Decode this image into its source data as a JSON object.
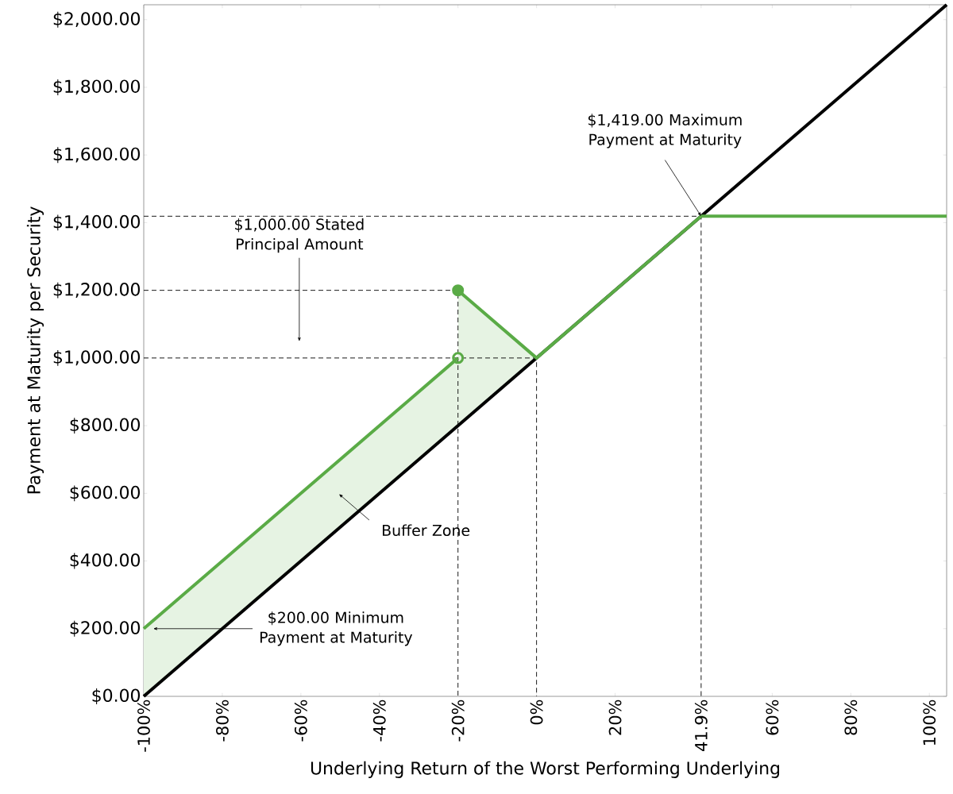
{
  "chart_data": {
    "type": "line",
    "xlabel": "Underlying Return of the Worst Performing Underlying",
    "ylabel": "Payment at Maturity per Security",
    "xlim": [
      -100,
      104.4
    ],
    "ylim": [
      0,
      2044
    ],
    "xticks": [
      {
        "value": -100,
        "label": "-100%"
      },
      {
        "value": -80,
        "label": "-80%"
      },
      {
        "value": -60,
        "label": "-60%"
      },
      {
        "value": -40,
        "label": "-40%"
      },
      {
        "value": -20,
        "label": "-20%"
      },
      {
        "value": 0,
        "label": "0%"
      },
      {
        "value": 20,
        "label": "20%"
      },
      {
        "value": 41.9,
        "label": "41.9%"
      },
      {
        "value": 60,
        "label": "60%"
      },
      {
        "value": 80,
        "label": "80%"
      },
      {
        "value": 100,
        "label": "100%"
      }
    ],
    "yticks": [
      {
        "value": 0,
        "label": "$0.00"
      },
      {
        "value": 200,
        "label": "$200.00"
      },
      {
        "value": 400,
        "label": "$400.00"
      },
      {
        "value": 600,
        "label": "$600.00"
      },
      {
        "value": 800,
        "label": "$800.00"
      },
      {
        "value": 1000,
        "label": "$1,000.00"
      },
      {
        "value": 1200,
        "label": "$1,200.00"
      },
      {
        "value": 1400,
        "label": "$1,400.00"
      },
      {
        "value": 1600,
        "label": "$1,600.00"
      },
      {
        "value": 1800,
        "label": "$1,800.00"
      },
      {
        "value": 2000,
        "label": "$2,000.00"
      }
    ],
    "grid": false,
    "series": [
      {
        "line_style": "dashed",
        "color": "#000000",
        "x": [
          -100,
          41.9,
          41.9
        ],
        "values": [
          1419,
          1419,
          0
        ]
      },
      {
        "line_style": "dashed",
        "color": "#000000",
        "x": [
          -100,
          -20,
          -20
        ],
        "values": [
          1200,
          1200,
          0
        ]
      },
      {
        "line_style": "dashed",
        "color": "#000000",
        "x": [
          -100,
          0,
          0
        ],
        "values": [
          1000,
          1000,
          0
        ]
      },
      {
        "line_style": "solid",
        "color": "#000000",
        "x": [
          -100,
          104.4
        ],
        "values": [
          0,
          2044
        ]
      },
      {
        "line_style": "solid",
        "color": "#5aab46",
        "x": [
          -100,
          -20
        ],
        "values": [
          200,
          1000
        ],
        "lower": [
          0,
          800
        ],
        "upper": [
          200,
          1000
        ]
      },
      {
        "line_style": "solid",
        "color": "#5aab46",
        "x": [
          -20,
          0,
          41.9,
          104.4
        ],
        "values": [
          1200,
          1000,
          1419,
          1419
        ],
        "lower": [
          800,
          1000,
          1419,
          1419
        ],
        "upper": [
          1200,
          1000,
          1419,
          1419
        ]
      },
      {
        "type": "scatter",
        "marker": "circle",
        "color": "#5aab46",
        "x": [
          -20
        ],
        "values": [
          1200
        ]
      },
      {
        "type": "scatter",
        "marker": "circle",
        "color": "#5aab46",
        "x": [
          -20
        ],
        "values": [
          1000
        ]
      }
    ],
    "annotations": [
      {
        "text": "$1,419.00 Maximum Payment at Maturity",
        "x": 41.9,
        "y": 1419
      },
      "$1,000.00 Stated Principal Amount",
      "Buffer Zone",
      "$200.00 Minimum Payment at Maturity"
    ]
  }
}
